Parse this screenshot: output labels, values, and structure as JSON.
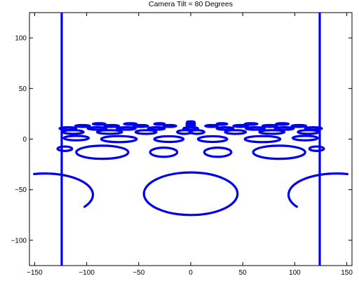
{
  "chart_data": {
    "type": "line",
    "title": "Camera Tilt = 80 Degrees",
    "xlabel": "",
    "ylabel": "",
    "xlim": [
      -155,
      155
    ],
    "ylim": [
      -125,
      125
    ],
    "xticks": [
      -150,
      -100,
      -50,
      0,
      50,
      100,
      150
    ],
    "yticks": [
      -100,
      -50,
      0,
      50,
      100
    ],
    "xtick_labels": [
      "−150",
      "−100",
      "−50",
      "0",
      "50",
      "100",
      "150"
    ],
    "ytick_labels": [
      "−100",
      "−50",
      "0",
      "50",
      "100"
    ],
    "grid": false,
    "legend": "none",
    "line_color": "#0000ee",
    "frame_lines": [
      {
        "x": [
          -124,
          -124
        ],
        "y": [
          -125,
          125
        ]
      },
      {
        "x": [
          124,
          124
        ],
        "y": [
          -125,
          125
        ]
      }
    ],
    "ellipses": [
      {
        "cx": 0,
        "cy": -54,
        "rx": 45,
        "ry": 21
      },
      {
        "cx": -85,
        "cy": -13,
        "rx": 25,
        "ry": 6.5
      },
      {
        "cx": 85,
        "cy": -13,
        "rx": 25,
        "ry": 6.5
      },
      {
        "cx": -26,
        "cy": -13,
        "rx": 13,
        "ry": 4.5
      },
      {
        "cx": 26,
        "cy": -13,
        "rx": 13,
        "ry": 4.5
      },
      {
        "cx": -121,
        "cy": -9.5,
        "rx": 7,
        "ry": 2.2
      },
      {
        "cx": 121,
        "cy": -9.5,
        "rx": 7,
        "ry": 2.2
      },
      {
        "cx": -69,
        "cy": 0,
        "rx": 17,
        "ry": 3
      },
      {
        "cx": 69,
        "cy": 0,
        "rx": 17,
        "ry": 3
      },
      {
        "cx": -21,
        "cy": 0,
        "rx": 14,
        "ry": 2.8
      },
      {
        "cx": 21,
        "cy": 0,
        "rx": 14,
        "ry": 2.8
      },
      {
        "cx": -110,
        "cy": 1,
        "rx": 12,
        "ry": 2.2
      },
      {
        "cx": 110,
        "cy": 1,
        "rx": 12,
        "ry": 2.2
      },
      {
        "cx": -113,
        "cy": 7,
        "rx": 10,
        "ry": 1.8
      },
      {
        "cx": 113,
        "cy": 7,
        "rx": 10,
        "ry": 1.8
      },
      {
        "cx": -78,
        "cy": 7,
        "rx": 12,
        "ry": 1.8
      },
      {
        "cx": 78,
        "cy": 7,
        "rx": 12,
        "ry": 1.8
      },
      {
        "cx": -43,
        "cy": 7,
        "rx": 10,
        "ry": 1.8
      },
      {
        "cx": 43,
        "cy": 7,
        "rx": 10,
        "ry": 1.8
      },
      {
        "cx": -6,
        "cy": 7,
        "rx": 7,
        "ry": 1.8
      },
      {
        "cx": 6,
        "cy": 7,
        "rx": 7,
        "ry": 1.8
      },
      {
        "cx": -118,
        "cy": 10.5,
        "rx": 8,
        "ry": 1.2
      },
      {
        "cx": 118,
        "cy": 10.5,
        "rx": 8,
        "ry": 1.2
      },
      {
        "cx": -90,
        "cy": 10.5,
        "rx": 9,
        "ry": 1.2
      },
      {
        "cx": 90,
        "cy": 10.5,
        "rx": 9,
        "ry": 1.2
      },
      {
        "cx": -62,
        "cy": 10.5,
        "rx": 9,
        "ry": 1.2
      },
      {
        "cx": 62,
        "cy": 10.5,
        "rx": 9,
        "ry": 1.2
      },
      {
        "cx": -33,
        "cy": 10.5,
        "rx": 8,
        "ry": 1.2
      },
      {
        "cx": 33,
        "cy": 10.5,
        "rx": 8,
        "ry": 1.2
      },
      {
        "cx": 0,
        "cy": 10.5,
        "rx": 7,
        "ry": 1.2
      },
      {
        "cx": -104,
        "cy": 13,
        "rx": 7,
        "ry": 0.9
      },
      {
        "cx": 104,
        "cy": 13,
        "rx": 7,
        "ry": 0.9
      },
      {
        "cx": -76,
        "cy": 13,
        "rx": 7,
        "ry": 0.9
      },
      {
        "cx": 76,
        "cy": 13,
        "rx": 7,
        "ry": 0.9
      },
      {
        "cx": -48,
        "cy": 13,
        "rx": 7,
        "ry": 0.9
      },
      {
        "cx": 48,
        "cy": 13,
        "rx": 7,
        "ry": 0.9
      },
      {
        "cx": -20,
        "cy": 13,
        "rx": 6,
        "ry": 0.9
      },
      {
        "cx": 20,
        "cy": 13,
        "rx": 6,
        "ry": 0.9
      },
      {
        "cx": 0,
        "cy": 13.5,
        "rx": 4,
        "ry": 0.7
      },
      {
        "cx": -88,
        "cy": 15,
        "rx": 6,
        "ry": 0.7
      },
      {
        "cx": 88,
        "cy": 15,
        "rx": 6,
        "ry": 0.7
      },
      {
        "cx": -58,
        "cy": 15,
        "rx": 6,
        "ry": 0.7
      },
      {
        "cx": 58,
        "cy": 15,
        "rx": 6,
        "ry": 0.7
      },
      {
        "cx": -30,
        "cy": 15,
        "rx": 5,
        "ry": 0.7
      },
      {
        "cx": 30,
        "cy": 15,
        "rx": 5,
        "ry": 0.7
      },
      {
        "cx": 0,
        "cy": 15.5,
        "rx": 4,
        "ry": 0.6
      },
      {
        "cx": 0,
        "cy": 17,
        "rx": 3.5,
        "ry": 0.5
      }
    ],
    "arcs": [
      {
        "cx": -140,
        "cy": -55,
        "rx": 46,
        "ry": 21,
        "t0": -0.6,
        "t1": 1.8
      },
      {
        "cx": 140,
        "cy": -55,
        "rx": 46,
        "ry": 21,
        "t0": 1.34,
        "t1": 3.74
      }
    ]
  }
}
